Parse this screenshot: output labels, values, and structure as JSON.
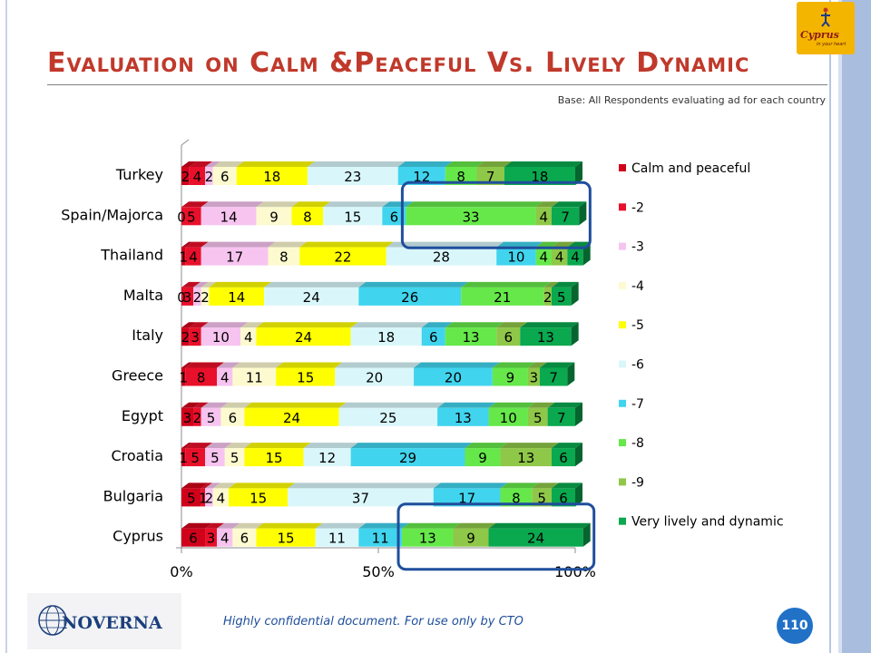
{
  "title": "Evaluation on Calm &Peaceful Vs. Lively Dynamic",
  "base_note": "Base: All Respondents evaluating ad for each country",
  "footer": "Highly confidential document. For use only by CTO",
  "page_number": "110",
  "brand_logo_text": "NOVERNA",
  "client_logo": {
    "name": "Cyprus",
    "tagline": "in your heart"
  },
  "colors": {
    "title": "#c0392b",
    "highlight_box": "#1f4e9c",
    "badge": "#2171c7"
  },
  "highlights": [
    {
      "row": "Spain/Majorca",
      "from": "-8",
      "to": "Very lively and dynamic"
    },
    {
      "row": "Cyprus",
      "from": "-8",
      "to": "Very lively and dynamic"
    }
  ],
  "chart_data": {
    "type": "bar",
    "stacked": true,
    "orientation": "horizontal",
    "percent_stacked": true,
    "xaxis_ticks": [
      "0%",
      "50%",
      "100%"
    ],
    "categories": [
      "Turkey",
      "Spain/Majorca",
      "Thailand",
      "Malta",
      "Italy",
      "Greece",
      "Egypt",
      "Croatia",
      "Bulgaria",
      "Cyprus"
    ],
    "series": [
      {
        "name": "Calm and peaceful",
        "color": "#d0021b",
        "values": [
          2,
          0,
          1,
          0,
          2,
          1,
          3,
          1,
          5,
          6
        ]
      },
      {
        "name": "-2",
        "color": "#e8102a",
        "values": [
          4,
          5,
          4,
          3,
          3,
          8,
          2,
          5,
          1,
          3
        ]
      },
      {
        "name": "-3",
        "color": "#f7c4f0",
        "values": [
          2,
          14,
          17,
          2,
          10,
          4,
          5,
          5,
          2,
          4
        ]
      },
      {
        "name": "-4",
        "color": "#fdfad0",
        "values": [
          6,
          9,
          8,
          2,
          4,
          11,
          6,
          5,
          4,
          6
        ]
      },
      {
        "name": "-5",
        "color": "#ffff00",
        "values": [
          18,
          8,
          22,
          14,
          24,
          15,
          24,
          15,
          15,
          15
        ]
      },
      {
        "name": "-6",
        "color": "#d9f7fb",
        "values": [
          23,
          15,
          28,
          24,
          18,
          20,
          25,
          12,
          37,
          11
        ]
      },
      {
        "name": "-7",
        "color": "#41d4ee",
        "values": [
          12,
          6,
          10,
          26,
          6,
          20,
          13,
          29,
          17,
          11
        ]
      },
      {
        "name": "-8",
        "color": "#66e84a",
        "values": [
          8,
          33,
          4,
          21,
          13,
          9,
          10,
          9,
          8,
          13
        ]
      },
      {
        "name": "-9",
        "color": "#8fc748",
        "values": [
          7,
          4,
          4,
          2,
          6,
          3,
          5,
          13,
          5,
          9
        ]
      },
      {
        "name": "Very lively and dynamic",
        "color": "#0aa84f",
        "values": [
          18,
          7,
          4,
          5,
          13,
          7,
          7,
          6,
          6,
          24
        ]
      }
    ],
    "legend_position": "right"
  }
}
